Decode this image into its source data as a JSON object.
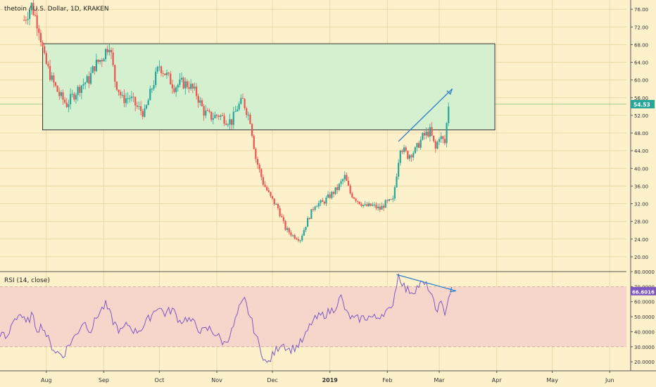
{
  "chart_data": [
    {
      "type": "candlestick",
      "title": "thetoin / U.S. Dollar, 1D, KRAKEN",
      "ytick_labels": [
        "76.00",
        "72.00",
        "68.00",
        "64.00",
        "60.00",
        "56.00",
        "52.00",
        "48.00",
        "44.00",
        "40.00",
        "36.00",
        "32.00",
        "28.00",
        "24.00",
        "20.00"
      ],
      "ylim": [
        16.8,
        78.1
      ],
      "last_price_label": "54.53",
      "last_price": 54.53,
      "range_box": {
        "top": 68.2,
        "bottom": 48.7,
        "x_start": "2018-07-30",
        "x_end": "2019-03-31"
      },
      "candles_anchor": [
        [
          "2018-07-20",
          73.6
        ],
        [
          "2018-07-24",
          76.9
        ],
        [
          "2018-07-28",
          71.9
        ],
        [
          "2018-07-31",
          64.7
        ],
        [
          "2018-08-04",
          60.0
        ],
        [
          "2018-08-08",
          56.6
        ],
        [
          "2018-08-12",
          54.5
        ],
        [
          "2018-08-16",
          56.8
        ],
        [
          "2018-08-20",
          58.9
        ],
        [
          "2018-08-24",
          60.1
        ],
        [
          "2018-08-27",
          63.2
        ],
        [
          "2018-08-31",
          65.0
        ],
        [
          "2018-09-04",
          68.3
        ],
        [
          "2018-09-07",
          60.0
        ],
        [
          "2018-09-11",
          55.6
        ],
        [
          "2018-09-15",
          56.1
        ],
        [
          "2018-09-19",
          53.8
        ],
        [
          "2018-09-23",
          52.4
        ],
        [
          "2018-09-27",
          58.3
        ],
        [
          "2018-10-01",
          63.3
        ],
        [
          "2018-10-05",
          61.0
        ],
        [
          "2018-10-09",
          58.5
        ],
        [
          "2018-10-13",
          59.3
        ],
        [
          "2018-10-17",
          58.9
        ],
        [
          "2018-10-21",
          56.8
        ],
        [
          "2018-10-25",
          52.8
        ],
        [
          "2018-10-29",
          51.6
        ],
        [
          "2018-11-02",
          52.1
        ],
        [
          "2018-11-06",
          51.0
        ],
        [
          "2018-11-09",
          50.6
        ],
        [
          "2018-11-12",
          53.8
        ],
        [
          "2018-11-15",
          55.3
        ],
        [
          "2018-11-19",
          51.0
        ],
        [
          "2018-11-22",
          42.3
        ],
        [
          "2018-11-26",
          36.7
        ],
        [
          "2018-11-30",
          33.4
        ],
        [
          "2018-12-04",
          31.0
        ],
        [
          "2018-12-08",
          26.4
        ],
        [
          "2018-12-12",
          24.8
        ],
        [
          "2018-12-16",
          24.0
        ],
        [
          "2018-12-20",
          28.3
        ],
        [
          "2018-12-24",
          31.9
        ],
        [
          "2018-12-28",
          32.2
        ],
        [
          "2019-01-01",
          33.8
        ],
        [
          "2019-01-05",
          35.4
        ],
        [
          "2019-01-09",
          38.1
        ],
        [
          "2019-01-12",
          34.4
        ],
        [
          "2019-01-16",
          32.7
        ],
        [
          "2019-01-20",
          31.4
        ],
        [
          "2019-01-24",
          31.6
        ],
        [
          "2019-01-28",
          30.8
        ],
        [
          "2019-01-31",
          32.1
        ],
        [
          "2019-02-04",
          32.7
        ],
        [
          "2019-02-08",
          45.0
        ],
        [
          "2019-02-12",
          42.9
        ],
        [
          "2019-02-16",
          44.0
        ],
        [
          "2019-02-20",
          47.1
        ],
        [
          "2019-02-24",
          48.4
        ],
        [
          "2019-02-27",
          44.3
        ],
        [
          "2019-03-01",
          47.4
        ],
        [
          "2019-03-04",
          45.7
        ],
        [
          "2019-03-06",
          54.5
        ]
      ],
      "trendline": [
        [
          "2019-02-07",
          46.1
        ],
        [
          "2019-03-08",
          58.0
        ]
      ],
      "x_range": [
        "2018-07-07",
        "2019-06-10"
      ],
      "xtick_labels": [
        [
          "2018-08-01",
          "Aug"
        ],
        [
          "2018-09-01",
          "Sep"
        ],
        [
          "2018-10-01",
          "Oct"
        ],
        [
          "2018-11-01",
          "Nov"
        ],
        [
          "2018-12-01",
          "Dec"
        ],
        [
          "2019-01-01",
          "2019"
        ],
        [
          "2019-02-01",
          "Feb"
        ],
        [
          "2019-03-01",
          "Mar"
        ],
        [
          "2019-04-01",
          "Apr"
        ],
        [
          "2019-05-01",
          "May"
        ],
        [
          "2019-06-01",
          "Jun"
        ]
      ]
    },
    {
      "type": "line",
      "title": "RSI (14, close)",
      "ytick_labels": [
        "80.0000",
        "70.0000",
        "60.0000",
        "50.0000",
        "40.0000",
        "30.0000",
        "20.0000"
      ],
      "ylim": [
        14.0,
        80.0
      ],
      "band": [
        30,
        70
      ],
      "last_value_label": "66.6016",
      "series_anchor": [
        [
          "2018-07-07",
          39
        ],
        [
          "2018-07-11",
          35
        ],
        [
          "2018-07-14",
          48
        ],
        [
          "2018-07-18",
          52
        ],
        [
          "2018-07-21",
          45
        ],
        [
          "2018-07-24",
          51
        ],
        [
          "2018-07-27",
          42
        ],
        [
          "2018-07-30",
          44
        ],
        [
          "2018-08-03",
          32
        ],
        [
          "2018-08-06",
          27
        ],
        [
          "2018-08-10",
          24
        ],
        [
          "2018-08-13",
          31
        ],
        [
          "2018-08-17",
          38
        ],
        [
          "2018-08-21",
          47
        ],
        [
          "2018-08-25",
          41
        ],
        [
          "2018-08-29",
          52
        ],
        [
          "2018-09-02",
          58
        ],
        [
          "2018-09-06",
          47
        ],
        [
          "2018-09-10",
          40
        ],
        [
          "2018-09-14",
          45
        ],
        [
          "2018-09-18",
          40
        ],
        [
          "2018-09-22",
          43
        ],
        [
          "2018-09-26",
          50
        ],
        [
          "2018-09-30",
          57
        ],
        [
          "2018-10-04",
          52
        ],
        [
          "2018-10-08",
          55
        ],
        [
          "2018-10-12",
          47
        ],
        [
          "2018-10-16",
          49
        ],
        [
          "2018-10-20",
          45
        ],
        [
          "2018-10-24",
          40
        ],
        [
          "2018-10-28",
          42
        ],
        [
          "2018-11-01",
          38
        ],
        [
          "2018-11-05",
          32
        ],
        [
          "2018-11-09",
          40
        ],
        [
          "2018-11-13",
          55
        ],
        [
          "2018-11-16",
          61
        ],
        [
          "2018-11-20",
          46
        ],
        [
          "2018-11-24",
          30
        ],
        [
          "2018-11-28",
          18
        ],
        [
          "2018-12-02",
          26
        ],
        [
          "2018-12-06",
          33
        ],
        [
          "2018-12-10",
          28
        ],
        [
          "2018-12-14",
          30
        ],
        [
          "2018-12-18",
          35
        ],
        [
          "2018-12-22",
          46
        ],
        [
          "2018-12-26",
          50
        ],
        [
          "2018-12-30",
          52
        ],
        [
          "2019-01-03",
          55
        ],
        [
          "2019-01-07",
          63
        ],
        [
          "2019-01-10",
          52
        ],
        [
          "2019-01-14",
          48
        ],
        [
          "2019-01-18",
          49
        ],
        [
          "2019-01-22",
          50
        ],
        [
          "2019-01-26",
          49
        ],
        [
          "2019-01-30",
          53
        ],
        [
          "2019-02-03",
          54
        ],
        [
          "2019-02-07",
          78
        ],
        [
          "2019-02-11",
          68
        ],
        [
          "2019-02-15",
          67
        ],
        [
          "2019-02-19",
          72
        ],
        [
          "2019-02-23",
          70
        ],
        [
          "2019-02-27",
          55
        ],
        [
          "2019-03-02",
          58
        ],
        [
          "2019-03-04",
          53
        ],
        [
          "2019-03-07",
          67
        ]
      ],
      "trendline": [
        [
          "2019-02-06",
          78.0
        ],
        [
          "2019-03-10",
          67.2
        ]
      ]
    }
  ],
  "colors": {
    "background": "#fdf1cc",
    "up": "#26a69a",
    "down": "#ef5350",
    "box_fill": "#d4f0cf",
    "rsi_line": "#7e57c2",
    "rsi_band": "#f6d6cb",
    "trendline": "#2f80c9",
    "price_label_bg": "#26a69a"
  }
}
